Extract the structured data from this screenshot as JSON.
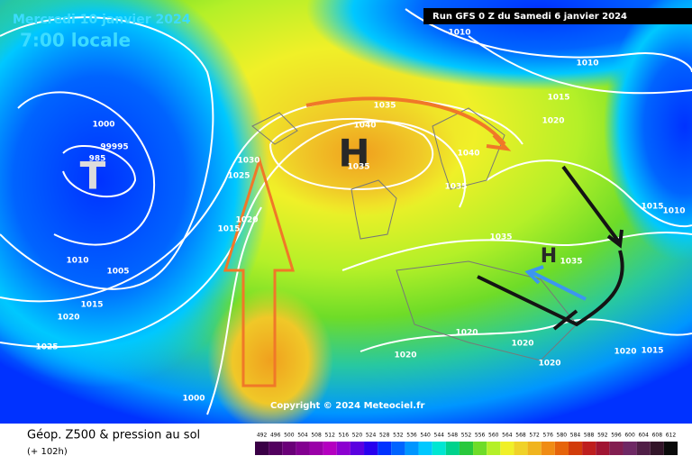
{
  "header": {
    "date": "Mercredi 10 janvier 2024",
    "time": "7:00 locale",
    "run": "Run GFS 0 Z du Samedi 6 janvier 2024"
  },
  "footer": {
    "title": "Géop. Z500 & pression au sol",
    "lead": "(+ 102h)",
    "copyright": "Copyright © 2024 Meteociel.fr"
  },
  "centers": [
    "H",
    "T",
    "H"
  ],
  "isobar_labels": [
    "1010",
    "1010",
    "1015",
    "1020",
    "1035",
    "1040",
    "1040",
    "1035",
    "1035",
    "1035",
    "1015",
    "1010",
    "1000",
    "99995",
    "985",
    "1010",
    "1005",
    "1015",
    "1020",
    "1025",
    "1000",
    "1020",
    "1020",
    "1020",
    "1020",
    "1020",
    "1015",
    "1030",
    "1025",
    "1020",
    "1015",
    "1035"
  ],
  "colorbar": {
    "labels": [
      "492",
      "496",
      "500",
      "504",
      "508",
      "512",
      "516",
      "520",
      "524",
      "528",
      "532",
      "536",
      "540",
      "544",
      "548",
      "552",
      "556",
      "560",
      "564",
      "568",
      "572",
      "576",
      "580",
      "584",
      "588",
      "592",
      "596",
      "600",
      "604",
      "608",
      "612"
    ],
    "colors": [
      "#3a0046",
      "#52005e",
      "#6a0078",
      "#820090",
      "#9a00a8",
      "#b400c0",
      "#8c00d0",
      "#5a00e0",
      "#2800ee",
      "#0032ff",
      "#0064ff",
      "#0096ff",
      "#00c8ff",
      "#00e6d2",
      "#00d28c",
      "#28c83c",
      "#6edc28",
      "#b4f028",
      "#f0f028",
      "#f0d228",
      "#f0b41e",
      "#f08c14",
      "#e6640a",
      "#d23c0a",
      "#be1e1e",
      "#a01432",
      "#821e50",
      "#6e2864",
      "#501e46",
      "#321428",
      "#0a0a0a"
    ]
  }
}
